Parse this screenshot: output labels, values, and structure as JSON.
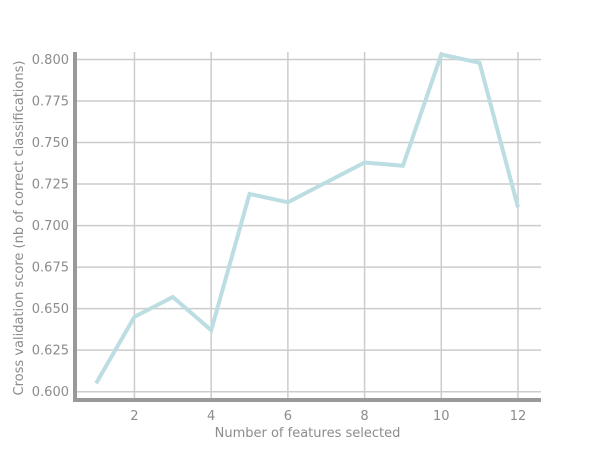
{
  "chart_data": {
    "type": "line",
    "title": "",
    "xlabel": "Number of features selected",
    "ylabel": "Cross validation score (nb of correct classifications)",
    "xlim": [
      0.45,
      12.6
    ],
    "ylim": [
      0.595,
      0.8045
    ],
    "x_ticks": [
      2,
      4,
      6,
      8,
      10,
      12
    ],
    "y_ticks": [
      0.6,
      0.625,
      0.65,
      0.675,
      0.7,
      0.725,
      0.75,
      0.775,
      0.8
    ],
    "y_tick_labels": [
      "0.600",
      "0.625",
      "0.650",
      "0.675",
      "0.700",
      "0.725",
      "0.750",
      "0.775",
      "0.800"
    ],
    "grid": true,
    "series": [
      {
        "x": [
          1,
          2,
          3,
          4,
          5,
          6,
          7,
          8,
          9,
          10,
          11,
          12
        ],
        "values": [
          0.605,
          0.645,
          0.657,
          0.637,
          0.719,
          0.714,
          0.726,
          0.738,
          0.736,
          0.803,
          0.798,
          0.711
        ],
        "color": "#bcdde2"
      }
    ],
    "colors": {
      "grid": "#cccccc",
      "axis": "#999999",
      "text": "#8c8c8c"
    }
  }
}
